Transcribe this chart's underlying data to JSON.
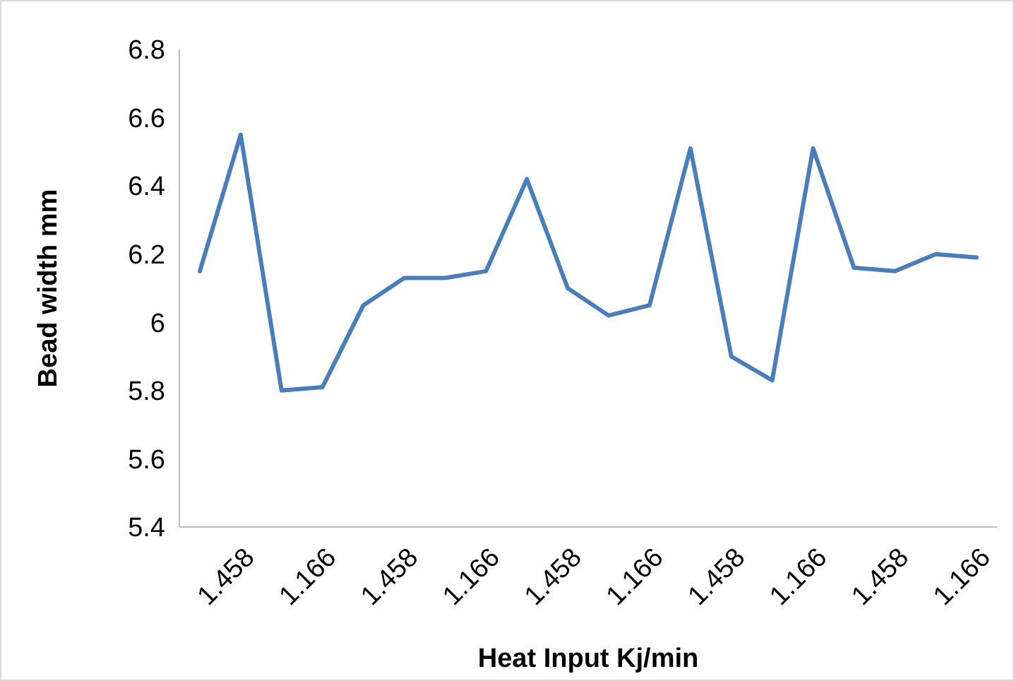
{
  "chart_data": {
    "type": "line",
    "xlabel": "Heat Input Kj/min",
    "ylabel": "Bead width mm",
    "categories": [
      null,
      "1.458",
      null,
      "1.166",
      null,
      "1.458",
      null,
      "1.166",
      null,
      "1.458",
      null,
      "1.166",
      null,
      "1.458",
      null,
      "1.166",
      null,
      "1.458",
      null,
      "1.166"
    ],
    "series": [
      {
        "color": "#4a7ebb",
        "values": [
          6.15,
          6.55,
          5.8,
          5.81,
          6.05,
          6.13,
          6.13,
          6.15,
          6.42,
          6.1,
          6.02,
          6.05,
          6.51,
          5.9,
          5.83,
          6.51,
          6.16,
          6.15,
          6.2,
          6.19
        ]
      }
    ],
    "ylim": [
      5.4,
      6.8
    ],
    "yticks": [
      5.4,
      5.6,
      5.8,
      6,
      6.2,
      6.4,
      6.6,
      6.8
    ],
    "grid": false,
    "marker": "none",
    "line_style": "solid"
  }
}
